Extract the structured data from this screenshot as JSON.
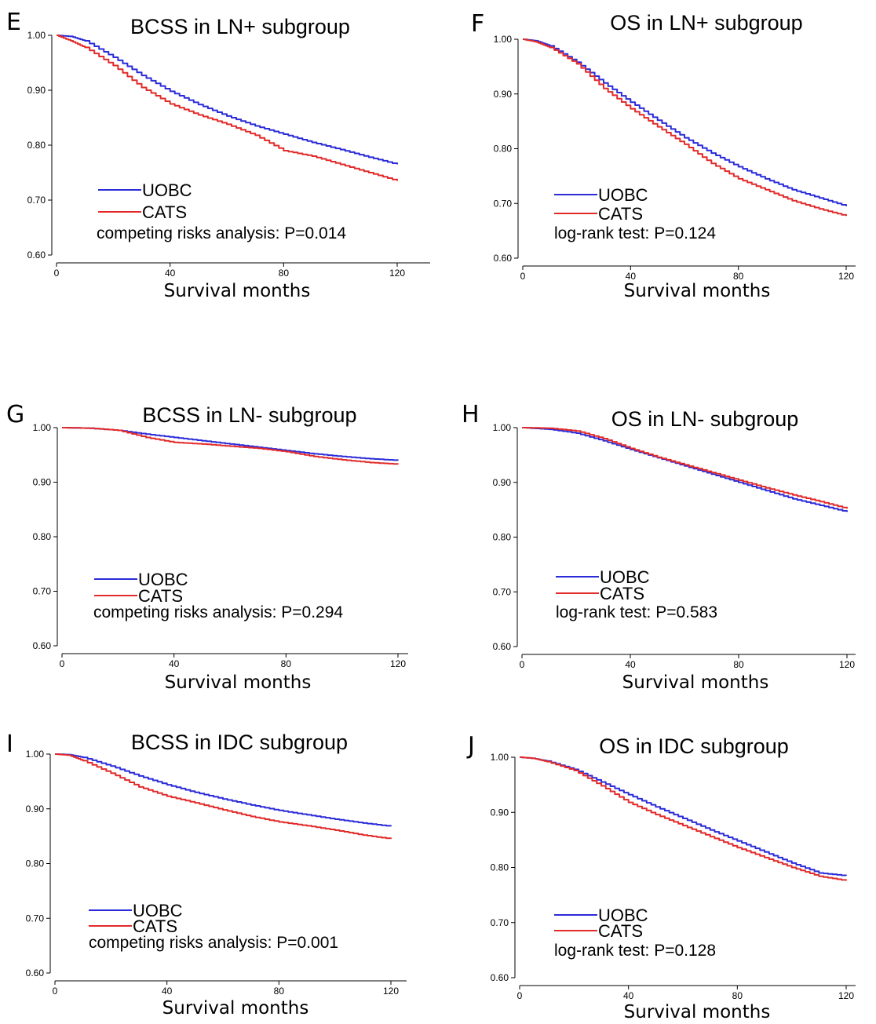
{
  "colors": {
    "UOBC": "#2b2bd9",
    "CATS": "#e22a2a"
  },
  "chart_data": [
    {
      "type": "line",
      "letter": "E",
      "title": "BCSS in LN+ subgroup",
      "xlabel": "Survival months",
      "ylabel": "",
      "xlim": [
        0,
        120
      ],
      "ylim": [
        0.6,
        1.0
      ],
      "xticks": [
        0,
        40,
        80,
        120
      ],
      "xtick_labels": [
        "0",
        "40",
        "80",
        "120"
      ],
      "yticks": [
        0.6,
        0.7,
        0.8,
        0.9,
        1.0
      ],
      "ytick_labels": [
        "0.60",
        "0.70",
        "0.80",
        "0.90",
        "1.00"
      ],
      "legend_position": "lower-left",
      "annotation": "competing risks analysis: P=0.014",
      "series": [
        {
          "name": "UOBC",
          "x": [
            0,
            5,
            10,
            20,
            30,
            40,
            50,
            60,
            70,
            80,
            90,
            100,
            110,
            120
          ],
          "values": [
            1.0,
            0.998,
            0.99,
            0.96,
            0.927,
            0.898,
            0.874,
            0.853,
            0.835,
            0.82,
            0.805,
            0.792,
            0.778,
            0.765
          ]
        },
        {
          "name": "CATS",
          "x": [
            0,
            5,
            10,
            20,
            30,
            40,
            50,
            60,
            70,
            80,
            90,
            100,
            110,
            120
          ],
          "values": [
            1.0,
            0.99,
            0.978,
            0.945,
            0.905,
            0.875,
            0.855,
            0.838,
            0.818,
            0.79,
            0.78,
            0.765,
            0.75,
            0.735
          ]
        }
      ]
    },
    {
      "type": "line",
      "letter": "F",
      "title": "OS in LN+ subgroup",
      "xlabel": "Survival months",
      "ylabel": "",
      "xlim": [
        0,
        120
      ],
      "ylim": [
        0.6,
        1.0
      ],
      "xticks": [
        0,
        40,
        80,
        120
      ],
      "xtick_labels": [
        "0",
        "40",
        "80",
        "120"
      ],
      "yticks": [
        0.6,
        0.7,
        0.8,
        0.9,
        1.0
      ],
      "ytick_labels": [
        "0.60",
        "0.70",
        "0.80",
        "0.90",
        "1.00"
      ],
      "legend_position": "lower-left",
      "annotation": "log-rank test: P=0.124",
      "series": [
        {
          "name": "UOBC",
          "x": [
            0,
            5,
            10,
            20,
            30,
            40,
            50,
            60,
            70,
            80,
            90,
            100,
            110,
            120
          ],
          "values": [
            1.0,
            0.997,
            0.988,
            0.958,
            0.92,
            0.885,
            0.852,
            0.82,
            0.792,
            0.767,
            0.745,
            0.725,
            0.71,
            0.695
          ]
        },
        {
          "name": "CATS",
          "x": [
            0,
            5,
            10,
            20,
            30,
            40,
            50,
            60,
            70,
            80,
            90,
            100,
            110,
            120
          ],
          "values": [
            1.0,
            0.995,
            0.985,
            0.955,
            0.91,
            0.873,
            0.84,
            0.808,
            0.773,
            0.745,
            0.725,
            0.705,
            0.69,
            0.677
          ]
        }
      ]
    },
    {
      "type": "line",
      "letter": "G",
      "title": "BCSS in LN- subgroup",
      "xlabel": "Survival months",
      "ylabel": "",
      "xlim": [
        0,
        120
      ],
      "ylim": [
        0.6,
        1.0
      ],
      "xticks": [
        0,
        40,
        80,
        120
      ],
      "xtick_labels": [
        "0",
        "40",
        "80",
        "120"
      ],
      "yticks": [
        0.6,
        0.7,
        0.8,
        0.9,
        1.0
      ],
      "ytick_labels": [
        "0.60",
        "0.70",
        "0.80",
        "0.90",
        "1.00"
      ],
      "legend_position": "lower-left",
      "annotation": "competing risks analysis: P=0.294",
      "series": [
        {
          "name": "UOBC",
          "x": [
            0,
            10,
            20,
            30,
            40,
            50,
            60,
            70,
            80,
            90,
            100,
            110,
            120
          ],
          "values": [
            1.0,
            0.999,
            0.995,
            0.988,
            0.982,
            0.976,
            0.97,
            0.964,
            0.958,
            0.952,
            0.947,
            0.943,
            0.94
          ]
        },
        {
          "name": "CATS",
          "x": [
            0,
            10,
            20,
            30,
            40,
            50,
            60,
            70,
            80,
            90,
            100,
            110,
            120
          ],
          "values": [
            1.0,
            0.999,
            0.995,
            0.982,
            0.973,
            0.97,
            0.966,
            0.962,
            0.956,
            0.947,
            0.941,
            0.936,
            0.933
          ]
        }
      ]
    },
    {
      "type": "line",
      "letter": "H",
      "title": "OS in LN- subgroup",
      "xlabel": "Survival months",
      "ylabel": "",
      "xlim": [
        0,
        120
      ],
      "ylim": [
        0.6,
        1.0
      ],
      "xticks": [
        0,
        40,
        80,
        120
      ],
      "xtick_labels": [
        "0",
        "40",
        "80",
        "120"
      ],
      "yticks": [
        0.6,
        0.7,
        0.8,
        0.9,
        1.0
      ],
      "ytick_labels": [
        "0.60",
        "0.70",
        "0.80",
        "0.90",
        "1.00"
      ],
      "legend_position": "lower-left",
      "annotation": "log-rank test: P=0.583",
      "series": [
        {
          "name": "UOBC",
          "x": [
            0,
            10,
            20,
            30,
            40,
            50,
            60,
            70,
            80,
            90,
            100,
            110,
            120
          ],
          "values": [
            1.0,
            0.997,
            0.99,
            0.976,
            0.96,
            0.945,
            0.93,
            0.915,
            0.9,
            0.885,
            0.87,
            0.858,
            0.846
          ]
        },
        {
          "name": "CATS",
          "x": [
            0,
            10,
            20,
            30,
            40,
            50,
            60,
            70,
            80,
            90,
            100,
            110,
            120
          ],
          "values": [
            1.0,
            0.999,
            0.994,
            0.98,
            0.962,
            0.946,
            0.932,
            0.918,
            0.904,
            0.89,
            0.877,
            0.865,
            0.852
          ]
        }
      ]
    },
    {
      "type": "line",
      "letter": "I",
      "title": "BCSS in IDC subgroup",
      "xlabel": "Survival months",
      "ylabel": "",
      "xlim": [
        0,
        120
      ],
      "ylim": [
        0.6,
        1.0
      ],
      "xticks": [
        0,
        40,
        80,
        120
      ],
      "xtick_labels": [
        "0",
        "40",
        "80",
        "120"
      ],
      "yticks": [
        0.6,
        0.7,
        0.8,
        0.9,
        1.0
      ],
      "ytick_labels": [
        "0.60",
        "0.70",
        "0.80",
        "0.90",
        "1.00"
      ],
      "legend_position": "lower-left",
      "annotation": "competing risks analysis: P=0.001",
      "series": [
        {
          "name": "UOBC",
          "x": [
            0,
            5,
            10,
            20,
            30,
            40,
            50,
            60,
            70,
            80,
            90,
            100,
            110,
            120
          ],
          "values": [
            1.0,
            0.999,
            0.994,
            0.978,
            0.96,
            0.944,
            0.93,
            0.918,
            0.907,
            0.897,
            0.889,
            0.881,
            0.874,
            0.868
          ]
        },
        {
          "name": "CATS",
          "x": [
            0,
            5,
            10,
            20,
            30,
            40,
            50,
            60,
            70,
            80,
            90,
            100,
            110,
            120
          ],
          "values": [
            1.0,
            0.998,
            0.988,
            0.965,
            0.94,
            0.923,
            0.911,
            0.898,
            0.886,
            0.876,
            0.869,
            0.861,
            0.852,
            0.845
          ]
        }
      ]
    },
    {
      "type": "line",
      "letter": "J",
      "title": "OS in IDC subgroup",
      "xlabel": "Survival months",
      "ylabel": "",
      "xlim": [
        0,
        120
      ],
      "ylim": [
        0.6,
        1.0
      ],
      "xticks": [
        0,
        40,
        80,
        120
      ],
      "xtick_labels": [
        "0",
        "40",
        "80",
        "120"
      ],
      "yticks": [
        0.6,
        0.7,
        0.8,
        0.9,
        1.0
      ],
      "ytick_labels": [
        "0.60",
        "0.70",
        "0.80",
        "0.90",
        "1.00"
      ],
      "legend_position": "lower-left",
      "annotation": "log-rank test: P=0.128",
      "series": [
        {
          "name": "UOBC",
          "x": [
            0,
            5,
            10,
            20,
            30,
            40,
            50,
            60,
            70,
            80,
            90,
            100,
            110,
            120
          ],
          "values": [
            1.0,
            0.998,
            0.993,
            0.978,
            0.955,
            0.932,
            0.91,
            0.889,
            0.868,
            0.848,
            0.828,
            0.808,
            0.79,
            0.785
          ]
        },
        {
          "name": "CATS",
          "x": [
            0,
            5,
            10,
            20,
            30,
            40,
            50,
            60,
            70,
            80,
            90,
            100,
            110,
            120
          ],
          "values": [
            1.0,
            0.998,
            0.992,
            0.976,
            0.948,
            0.918,
            0.896,
            0.876,
            0.856,
            0.836,
            0.818,
            0.8,
            0.784,
            0.776
          ]
        }
      ]
    }
  ]
}
